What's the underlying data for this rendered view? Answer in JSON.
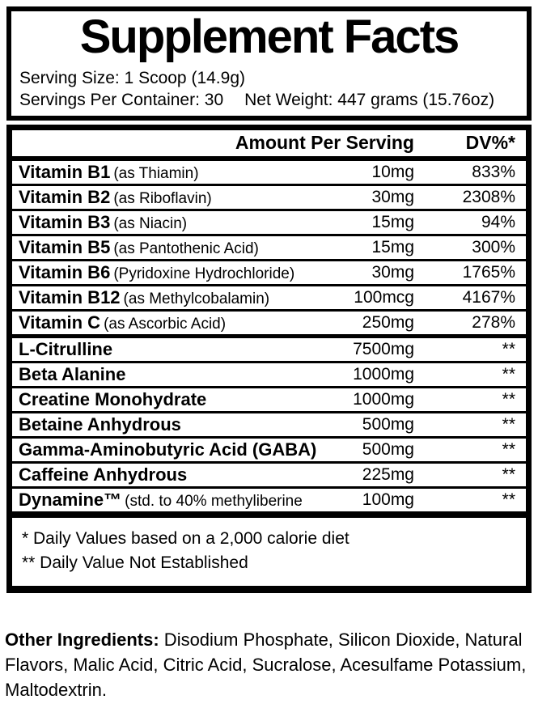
{
  "label": {
    "title": "Supplement Facts",
    "serving_size": "Serving Size: 1 Scoop (14.9g)",
    "servings_per_container": "Servings Per Container: 30",
    "net_weight": "Net Weight: 447 grams (15.76oz)"
  },
  "table": {
    "header": {
      "amount": "Amount Per Serving",
      "dv": "DV%*"
    },
    "rows": [
      {
        "name": "Vitamin B1",
        "detail": "(as Thiamin)",
        "amount": "10mg",
        "dv": "833%"
      },
      {
        "name": "Vitamin B2",
        "detail": "(as Riboflavin)",
        "amount": "30mg",
        "dv": "2308%"
      },
      {
        "name": "Vitamin B3",
        "detail": "(as Niacin)",
        "amount": "15mg",
        "dv": "94%"
      },
      {
        "name": "Vitamin B5",
        "detail": "(as Pantothenic Acid)",
        "amount": "15mg",
        "dv": "300%"
      },
      {
        "name": "Vitamin B6",
        "detail": "(Pyridoxine Hydrochloride)",
        "amount": "30mg",
        "dv": "1765%"
      },
      {
        "name": "Vitamin B12",
        "detail": "(as Methylcobalamin)",
        "amount": "100mcg",
        "dv": "4167%"
      },
      {
        "name": "Vitamin C",
        "detail": "(as Ascorbic Acid)",
        "amount": "250mg",
        "dv": "278%",
        "section_end": true
      },
      {
        "name": "L-Citrulline",
        "detail": "",
        "amount": "7500mg",
        "dv": "**"
      },
      {
        "name": "Beta Alanine",
        "detail": "",
        "amount": "1000mg",
        "dv": "**"
      },
      {
        "name": "Creatine Monohydrate",
        "detail": "",
        "amount": "1000mg",
        "dv": "**"
      },
      {
        "name": "Betaine Anhydrous",
        "detail": "",
        "amount": "500mg",
        "dv": "**"
      },
      {
        "name": "Gamma-Aminobutyric Acid (GABA)",
        "detail": "",
        "amount": "500mg",
        "dv": "**"
      },
      {
        "name": "Caffeine Anhydrous",
        "detail": "",
        "amount": "225mg",
        "dv": "**"
      },
      {
        "name": "Dynamine™",
        "detail": "(std. to 40% methyliberine",
        "amount": "100mg",
        "dv": "**"
      }
    ],
    "footnotes": [
      "* Daily Values based on a 2,000 calorie diet",
      "** Daily Value Not Established"
    ]
  },
  "other_ingredients": {
    "label": "Other Ingredients:",
    "text": " Disodium Phosphate, Silicon Dioxide, Natural Flavors, Malic Acid, Citric Acid, Sucralose, Acesulfame Potassium, Maltodextrin."
  },
  "colors": {
    "ink": "#000000",
    "background": "#ffffff"
  }
}
